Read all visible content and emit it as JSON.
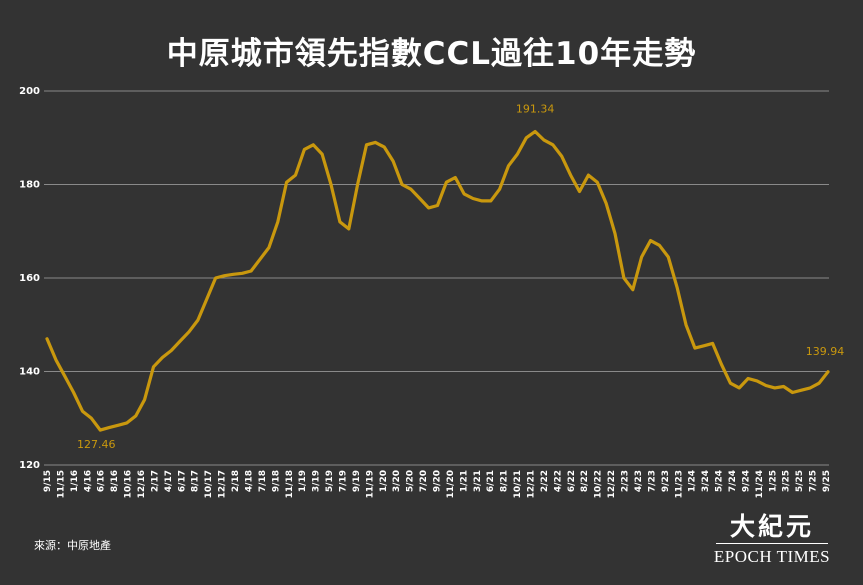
{
  "chart_data": {
    "type": "line",
    "title": "中原城市領先指數CCL過往10年走勢",
    "xlabel": "",
    "ylabel": "",
    "ylim": [
      120,
      200
    ],
    "yticks": [
      120,
      140,
      160,
      180,
      200
    ],
    "grid": true,
    "legend": "none",
    "line_color": "#c9980e",
    "x_ticks": [
      "9/15",
      "11/15",
      "1/16",
      "4/16",
      "6/16",
      "8/16",
      "10/16",
      "12/16",
      "2/17",
      "4/17",
      "6/17",
      "8/17",
      "10/17",
      "12/17",
      "2/18",
      "4/18",
      "7/18",
      "9/18",
      "11/18",
      "1/19",
      "3/19",
      "5/19",
      "7/19",
      "9/19",
      "11/19",
      "1/20",
      "3/20",
      "5/20",
      "7/20",
      "9/20",
      "11/20",
      "1/21",
      "3/21",
      "6/21",
      "8/21",
      "10/21",
      "12/21",
      "2/22",
      "4/22",
      "6/22",
      "8/22",
      "10/22",
      "12/22",
      "2/23",
      "4/23",
      "7/23",
      "9/23",
      "11/23",
      "1/24",
      "3/24",
      "5/24",
      "7/24",
      "9/24",
      "11/24",
      "1/25",
      "3/25",
      "5/25",
      "7/25",
      "9/25"
    ],
    "series": [
      {
        "values": [
          147.0,
          142.5,
          139.0,
          135.5,
          131.5,
          130.0,
          127.46,
          128.0,
          128.5,
          129.0,
          130.5,
          134.0,
          141.0,
          143.0,
          144.5,
          146.5,
          148.5,
          151.0,
          155.5,
          160.0,
          160.5,
          160.8,
          161.0,
          161.5,
          164.0,
          166.5,
          172.0,
          180.5,
          182.0,
          187.5,
          188.5,
          186.5,
          180.0,
          172.0,
          170.5,
          180.0,
          188.5,
          189.0,
          188.0,
          185.0,
          180.0,
          179.0,
          177.0,
          175.0,
          175.5,
          180.5,
          181.5,
          178.0,
          177.0,
          176.5,
          176.5,
          179.0,
          184.0,
          186.5,
          190.0,
          191.34,
          189.5,
          188.5,
          186.0,
          182.0,
          178.5,
          182.0,
          180.5,
          176.0,
          169.5,
          160.0,
          157.5,
          164.5,
          168.0,
          167.0,
          164.5,
          158.0,
          150.0,
          145.0,
          145.5,
          146.0,
          141.5,
          137.5,
          136.5,
          138.5,
          138.0,
          137.0,
          136.5,
          136.8,
          135.5,
          136.0,
          136.5,
          137.5,
          139.94
        ]
      }
    ],
    "annotations": [
      {
        "label": "191.34",
        "index": 55,
        "value": 191.34
      },
      {
        "label": "127.46",
        "index": 6,
        "value": 127.46
      },
      {
        "label": "139.94",
        "index": 88,
        "value": 139.94
      }
    ]
  },
  "footer": {
    "source": "來源：中原地產",
    "logo_cn": "大紀元",
    "logo_en": "EPOCH TIMES"
  }
}
